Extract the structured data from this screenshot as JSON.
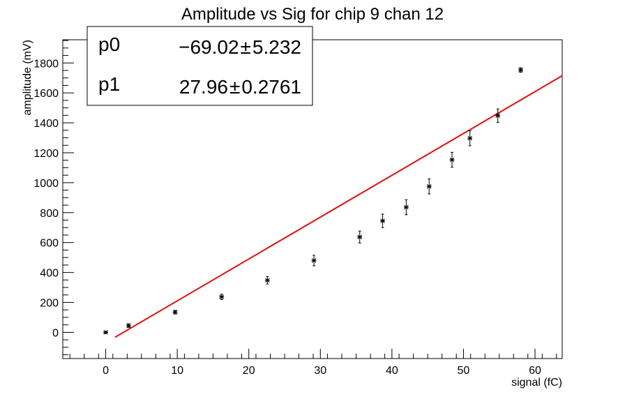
{
  "chart_data": {
    "type": "scatter",
    "title": "Amplitude vs Sig for chip 9 chan 12",
    "xlabel": "signal (fC)",
    "ylabel": "amplitude (mV)",
    "xlim": [
      -6,
      63.8
    ],
    "ylim": [
      -175,
      1955
    ],
    "x_ticks": [
      0,
      10,
      20,
      30,
      40,
      50,
      60
    ],
    "y_ticks": [
      0,
      200,
      400,
      600,
      800,
      1000,
      1200,
      1400,
      1600,
      1800
    ],
    "grid": false,
    "series": [
      {
        "marker": "star",
        "color": "#000000",
        "points": [
          {
            "x": 0.0,
            "y": 0,
            "err": 8
          },
          {
            "x": 3.2,
            "y": 45,
            "err": 12
          },
          {
            "x": 9.7,
            "y": 135,
            "err": 12
          },
          {
            "x": 16.2,
            "y": 237,
            "err": 18
          },
          {
            "x": 22.6,
            "y": 348,
            "err": 25
          },
          {
            "x": 29.1,
            "y": 480,
            "err": 35
          },
          {
            "x": 35.5,
            "y": 637,
            "err": 40
          },
          {
            "x": 38.7,
            "y": 745,
            "err": 45
          },
          {
            "x": 42.0,
            "y": 836,
            "err": 50
          },
          {
            "x": 45.2,
            "y": 975,
            "err": 50
          },
          {
            "x": 48.4,
            "y": 1153,
            "err": 50
          },
          {
            "x": 50.9,
            "y": 1297,
            "err": 50
          },
          {
            "x": 54.8,
            "y": 1448,
            "err": 45
          },
          {
            "x": 58.0,
            "y": 1753,
            "err": 15
          }
        ]
      }
    ],
    "fit": {
      "color": "#e01010",
      "p0": -69.02,
      "p1": 27.96,
      "x_range": [
        1.3,
        63.8
      ]
    },
    "stats_box": {
      "rows": [
        {
          "name": "p0",
          "value": "−69.02",
          "error": "5.232"
        },
        {
          "name": "p1",
          "value": "27.96",
          "error": "0.2761"
        }
      ],
      "pm_symbol": "±"
    }
  }
}
